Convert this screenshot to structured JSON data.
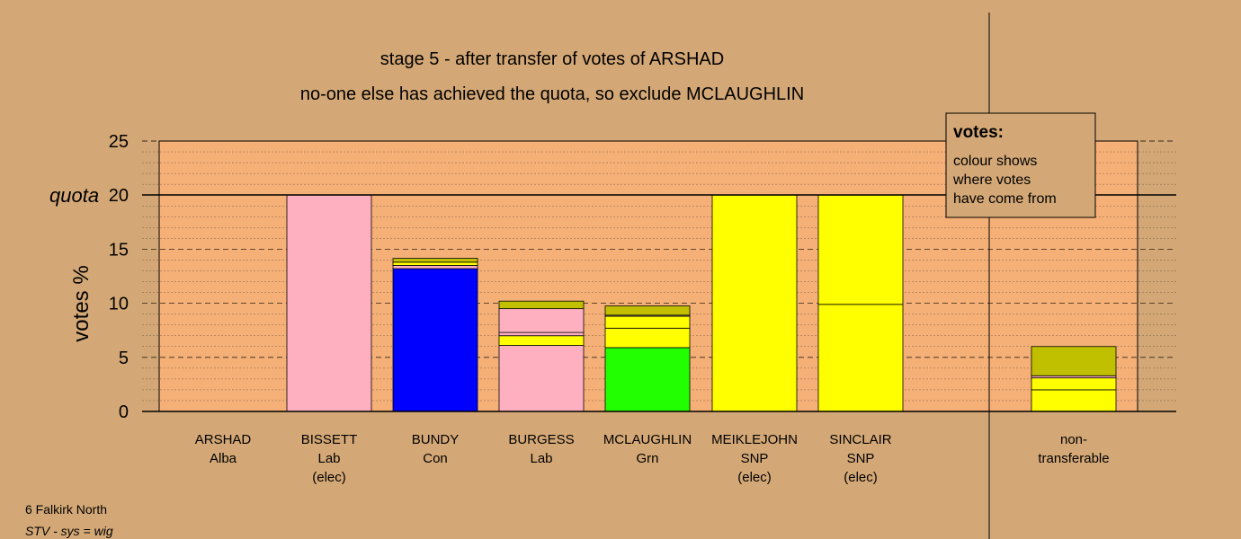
{
  "chart_data": {
    "type": "bar",
    "stacked": true,
    "title": "stage 5 - after transfer of votes of ARSHAD",
    "subtitle": "no-one else has achieved the quota, so exclude MCLAUGHLIN",
    "ylabel": "votes %",
    "quota_label": "quota",
    "quota_value": 20,
    "ylim": [
      0,
      25
    ],
    "yticks": [
      0,
      5,
      10,
      15,
      20,
      25
    ],
    "grid": true,
    "legend_position": "top-right",
    "legend": {
      "title": "votes:",
      "lines": [
        "colour shows",
        "where votes",
        "have come from"
      ]
    },
    "categories": [
      {
        "name": "ARSHAD",
        "party": "Alba",
        "note": ""
      },
      {
        "name": "BISSETT",
        "party": "Lab",
        "note": "(elec)"
      },
      {
        "name": "BUNDY",
        "party": "Con",
        "note": ""
      },
      {
        "name": "BURGESS",
        "party": "Lab",
        "note": ""
      },
      {
        "name": "MCLAUGHLIN",
        "party": "Grn",
        "note": ""
      },
      {
        "name": "MEIKLEJOHN",
        "party": "SNP",
        "note": "(elec)"
      },
      {
        "name": "SINCLAIR",
        "party": "SNP",
        "note": "(elec)"
      }
    ],
    "nontransferable_label": [
      "non-",
      "transferable"
    ],
    "bars": [
      [],
      [
        {
          "value": 20.0,
          "color": "#ffb0c0"
        }
      ],
      [
        {
          "value": 13.2,
          "color": "#0000ff"
        },
        {
          "value": 0.3,
          "color": "#ffb0c0"
        },
        {
          "value": 0.3,
          "color": "#ffff00"
        },
        {
          "value": 0.35,
          "color": "#c0c000"
        }
      ],
      [
        {
          "value": 6.1,
          "color": "#ffb0c0"
        },
        {
          "value": 0.9,
          "color": "#ffff00"
        },
        {
          "value": 0.3,
          "color": "#ffb0c0"
        },
        {
          "value": 2.2,
          "color": "#ffb0c0"
        },
        {
          "value": 0.7,
          "color": "#c0c000"
        }
      ],
      [
        {
          "value": 5.9,
          "color": "#22ff00"
        },
        {
          "value": 1.8,
          "color": "#ffff00"
        },
        {
          "value": 1.1,
          "color": "#ffff00"
        },
        {
          "value": 0.1,
          "color": "#ffb0c0"
        },
        {
          "value": 0.85,
          "color": "#c0c000"
        }
      ],
      [
        {
          "value": 20.0,
          "color": "#ffff00"
        }
      ],
      [
        {
          "value": 9.9,
          "color": "#ffff00"
        },
        {
          "value": 10.1,
          "color": "#ffff00"
        }
      ]
    ],
    "nontransferable": [
      {
        "value": 2.0,
        "color": "#ffff00"
      },
      {
        "value": 1.1,
        "color": "#ffff00"
      },
      {
        "value": 0.2,
        "color": "#ffb0c0"
      },
      {
        "value": 2.7,
        "color": "#c0c000"
      }
    ]
  },
  "footer": {
    "area": "6 Falkirk North",
    "system": "STV - sys = wig"
  },
  "colors": {
    "background": "#d4a876",
    "plot_background": "#f5b077"
  }
}
